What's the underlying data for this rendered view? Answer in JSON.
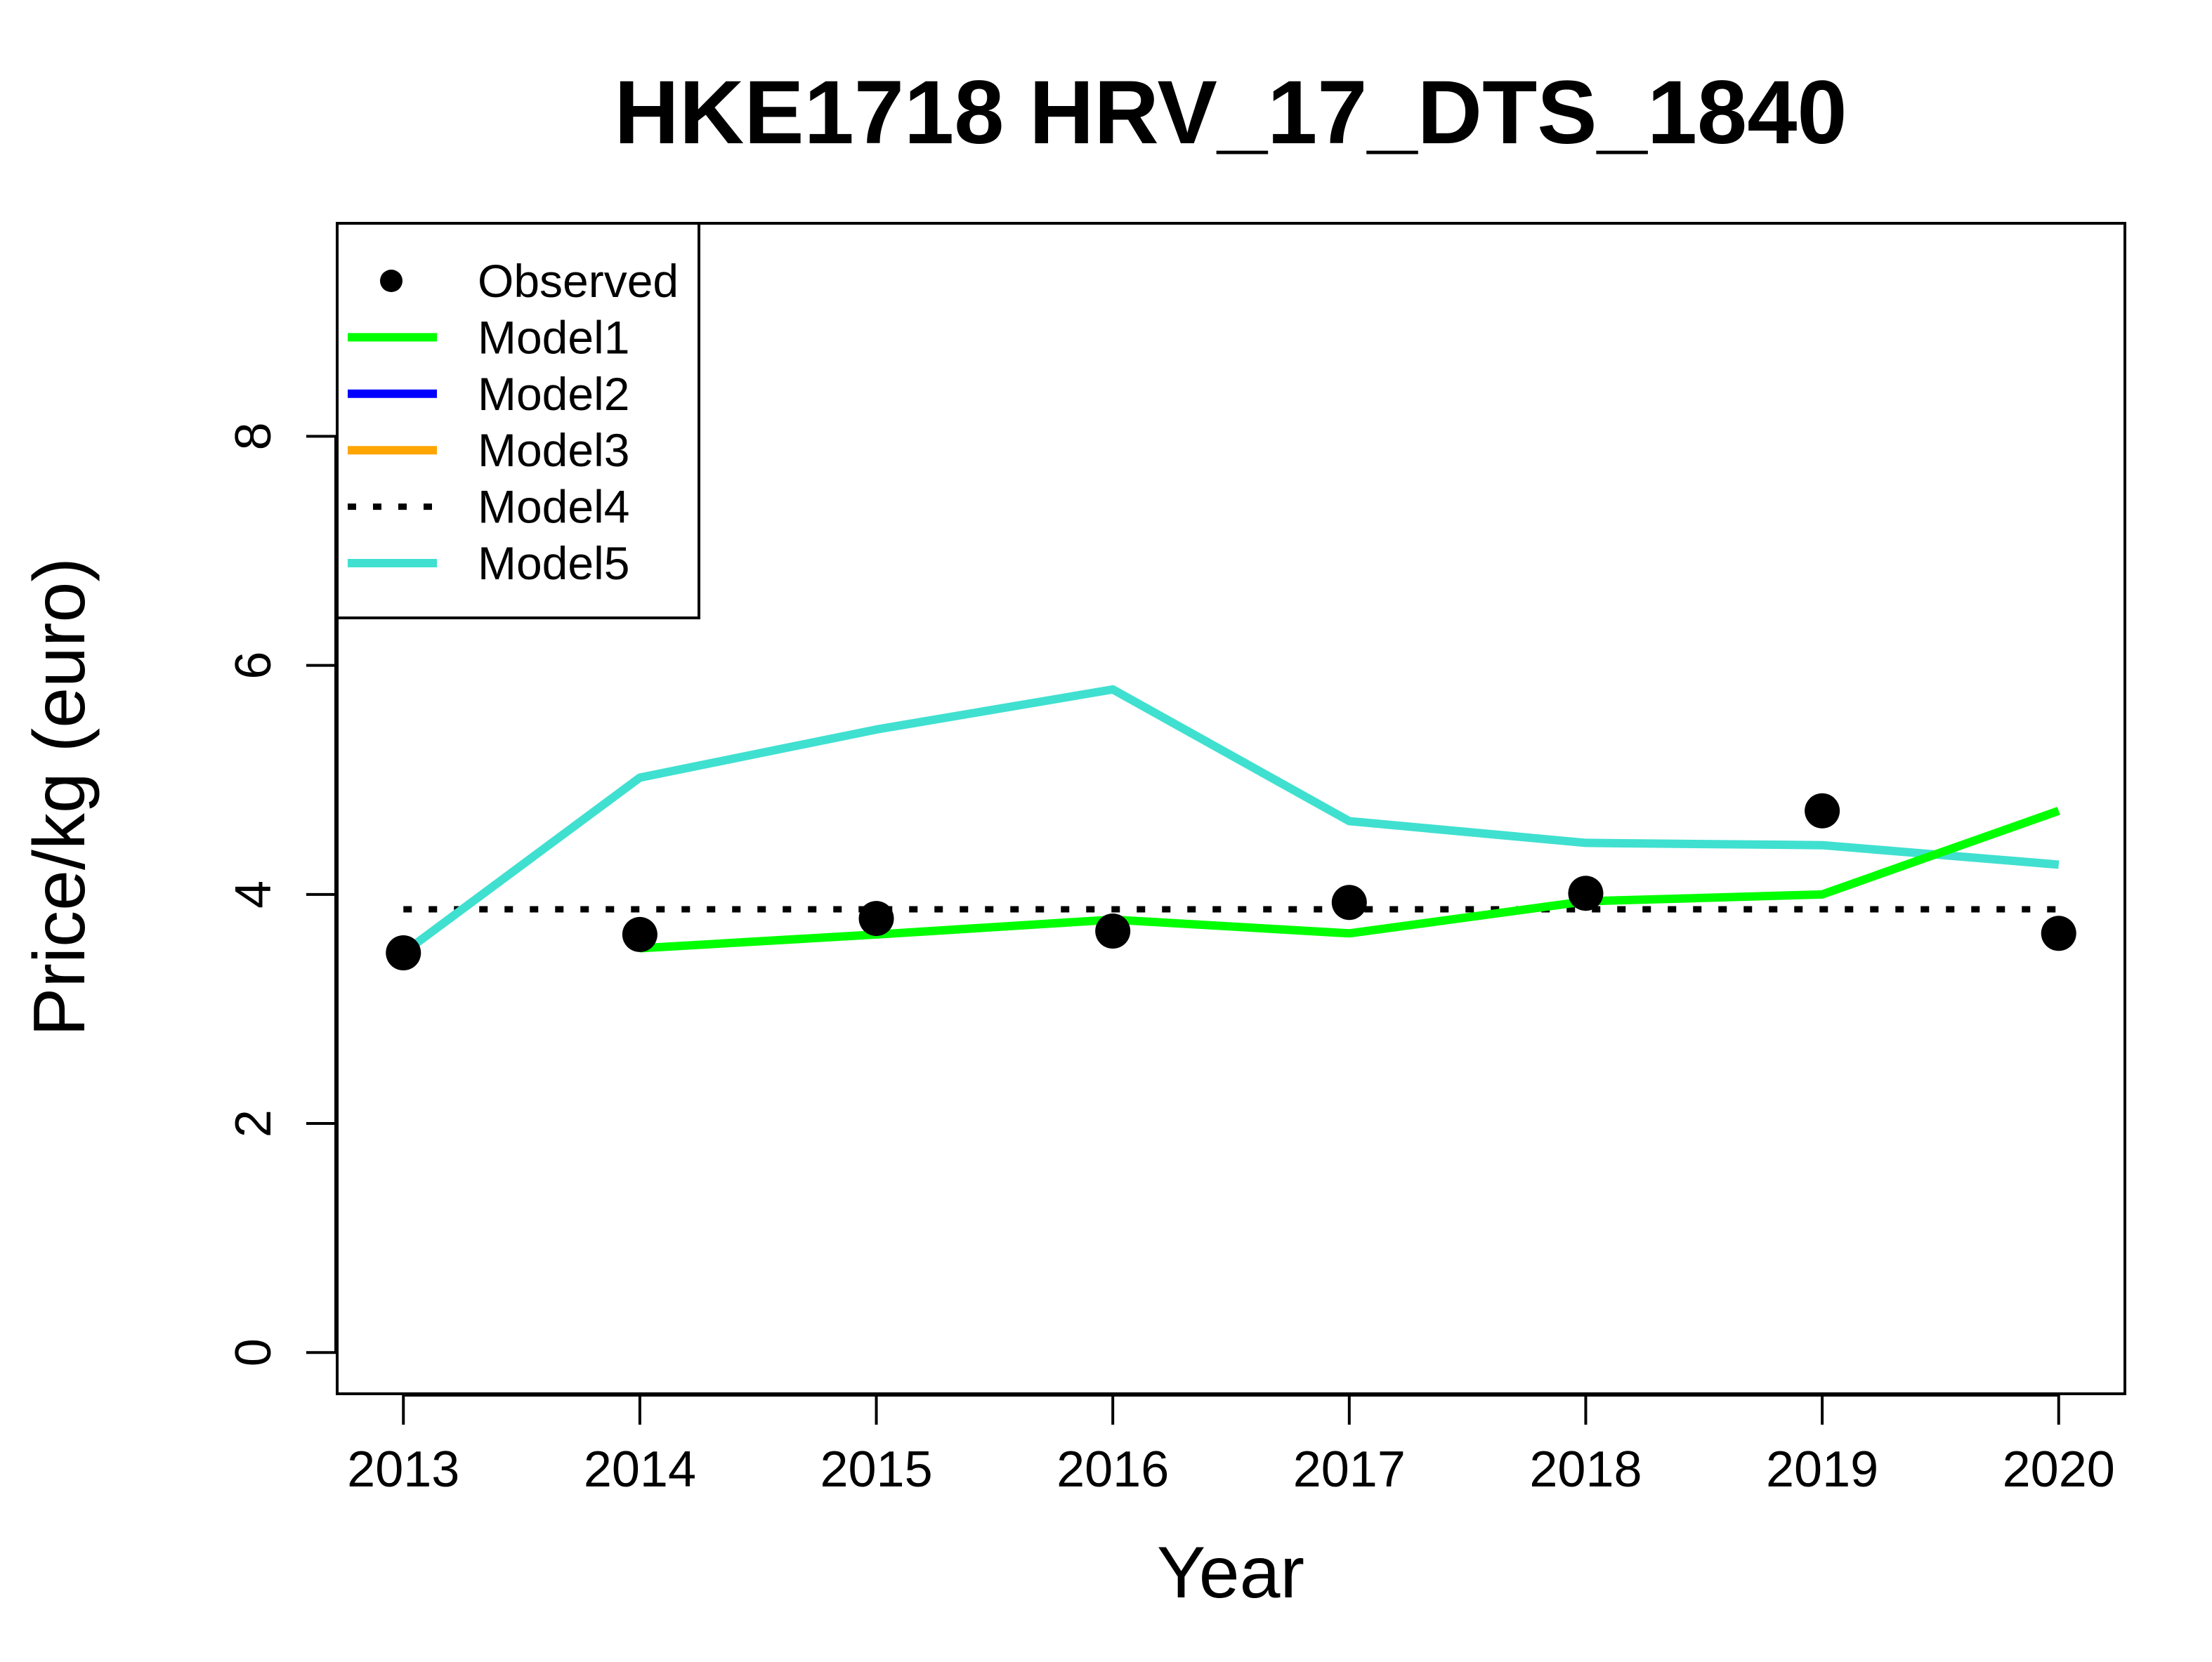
{
  "chart_data": {
    "type": "line",
    "title": "HKE1718 HRV_17_DTS_1840",
    "xlabel": "Year",
    "ylabel": "Price/kg (euro)",
    "x": [
      2013,
      2014,
      2015,
      2016,
      2017,
      2018,
      2019,
      2020
    ],
    "x_tick_labels": [
      "2013",
      "2014",
      "2015",
      "2016",
      "2017",
      "2018",
      "2019",
      "2020"
    ],
    "y_ticks": [
      0,
      2,
      4,
      6,
      8
    ],
    "y_tick_labels": [
      "0",
      "2",
      "4",
      "6",
      "8"
    ],
    "xlim": [
      2012.72,
      2020.28
    ],
    "ylim": [
      -0.36,
      9.86
    ],
    "grid": false,
    "legend_position": "top-left",
    "series": [
      {
        "name": "Observed",
        "style": "points",
        "color": "#000000",
        "x": [
          2013,
          2014,
          2015,
          2016,
          2017,
          2018,
          2019,
          2020
        ],
        "values": [
          3.49,
          3.65,
          3.79,
          3.68,
          3.93,
          4.01,
          4.73,
          3.66
        ]
      },
      {
        "name": "Model1",
        "style": "line",
        "color": "#00ff00",
        "x": [
          2014,
          2015,
          2016,
          2017,
          2018,
          2019,
          2020
        ],
        "values": [
          3.53,
          3.65,
          3.78,
          3.66,
          3.94,
          4.0,
          4.73
        ]
      },
      {
        "name": "Model2",
        "style": "line",
        "color": "#0000ff",
        "x": [],
        "values": []
      },
      {
        "name": "Model3",
        "style": "line",
        "color": "#ffa500",
        "x": [],
        "values": []
      },
      {
        "name": "Model4",
        "style": "dotted",
        "color": "#000000",
        "x": [
          2013,
          2020
        ],
        "values": [
          3.87,
          3.87
        ]
      },
      {
        "name": "Model5",
        "style": "line",
        "color": "#40e0d0",
        "x": [
          2013,
          2014,
          2015,
          2016,
          2017,
          2018,
          2019,
          2020
        ],
        "values": [
          3.49,
          5.02,
          5.44,
          5.79,
          4.64,
          4.45,
          4.43,
          4.26
        ]
      }
    ]
  }
}
